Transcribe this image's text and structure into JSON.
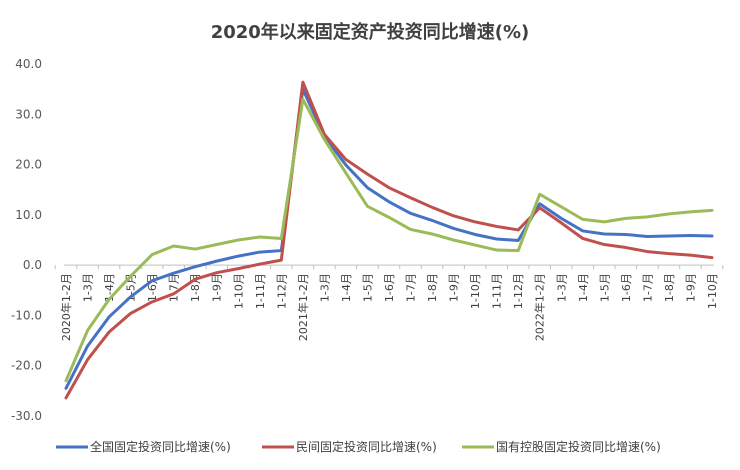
{
  "chart_data": {
    "type": "line",
    "title": "2020年以来固定资产投资同比增速(%)",
    "xlabel": "",
    "ylabel": "",
    "ylim": [
      -30,
      40
    ],
    "yticks": [
      "40.0",
      "30.0",
      "20.0",
      "10.0",
      "0.0",
      "-10.0",
      "-20.0",
      "-30.0"
    ],
    "grid": false,
    "legend_position": "bottom",
    "categories": [
      "2020年1-2月",
      "1-3月",
      "1-4月",
      "1-5月",
      "1-6月",
      "1-7月",
      "1-8月",
      "1-9月",
      "1-10月",
      "1-11月",
      "1-12月",
      "2021年1-2月",
      "1-3月",
      "1-4月",
      "1-5月",
      "1-6月",
      "1-7月",
      "1-8月",
      "1-9月",
      "1-10月",
      "1-11月",
      "1-12月",
      "2022年1-2月",
      "1-3月",
      "1-4月",
      "1-5月",
      "1-6月",
      "1-7月",
      "1-8月",
      "1-9月",
      "1-10月"
    ],
    "series": [
      {
        "name": "全国固定投资同比增速(%)",
        "color": "#4472C4",
        "values": [
          -24.5,
          -16.1,
          -10.3,
          -6.3,
          -3.1,
          -1.6,
          -0.3,
          0.8,
          1.8,
          2.6,
          2.9,
          35.0,
          25.6,
          19.9,
          15.4,
          12.6,
          10.3,
          8.9,
          7.3,
          6.1,
          5.2,
          4.9,
          12.2,
          9.3,
          6.8,
          6.2,
          6.1,
          5.7,
          5.8,
          5.9,
          5.8
        ]
      },
      {
        "name": "民间固定投资同比增速(%)",
        "color": "#C0504D",
        "values": [
          -26.4,
          -18.8,
          -13.3,
          -9.6,
          -7.3,
          -5.7,
          -2.8,
          -1.5,
          -0.7,
          0.2,
          1.0,
          36.4,
          26.0,
          21.0,
          18.1,
          15.4,
          13.4,
          11.5,
          9.8,
          8.6,
          7.7,
          7.0,
          11.4,
          8.4,
          5.3,
          4.1,
          3.5,
          2.7,
          2.3,
          2.0,
          1.5
        ]
      },
      {
        "name": "国有控股固定投资同比增速(%)",
        "color": "#9BBB59",
        "values": [
          -23.0,
          -13.0,
          -6.8,
          -2.2,
          2.1,
          3.8,
          3.2,
          4.1,
          5.0,
          5.6,
          5.3,
          33.0,
          25.0,
          18.3,
          11.7,
          9.5,
          7.1,
          6.2,
          5.0,
          4.0,
          3.0,
          2.9,
          14.1,
          11.6,
          9.1,
          8.6,
          9.3,
          9.6,
          10.2,
          10.6,
          10.9
        ]
      }
    ]
  }
}
